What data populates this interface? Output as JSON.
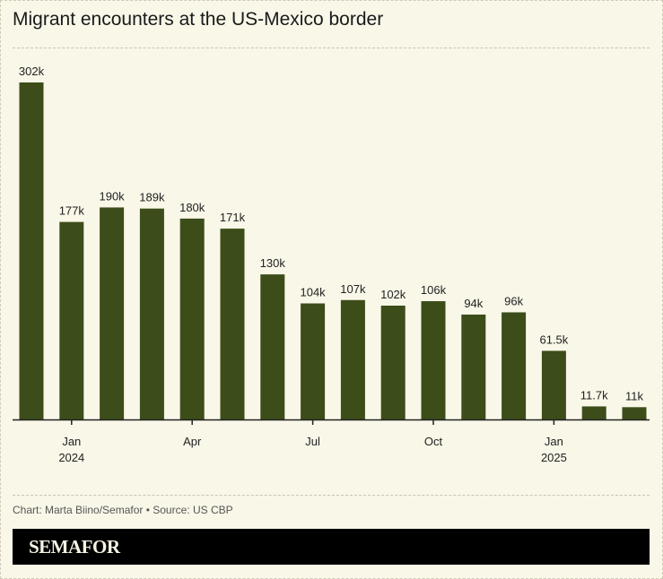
{
  "title": "Migrant encounters at the US-Mexico border",
  "credit": "Chart: Marta Biino/Semafor • Source: US CBP",
  "brand": "SEMAFOR",
  "colors": {
    "bar": "#3c4d1a",
    "background": "#f9f7e8"
  },
  "chart_data": {
    "type": "bar",
    "categories": [
      "Dec 2023",
      "Jan 2024",
      "Feb 2024",
      "Mar 2024",
      "Apr 2024",
      "May 2024",
      "Jun 2024",
      "Jul 2024",
      "Aug 2024",
      "Sep 2024",
      "Oct 2024",
      "Nov 2024",
      "Dec 2024",
      "Jan 2025",
      "Feb 2025",
      "Mar 2025"
    ],
    "values": [
      302000,
      177000,
      190000,
      189000,
      180000,
      171000,
      130000,
      104000,
      107000,
      102000,
      106000,
      94000,
      96000,
      61500,
      11700,
      11000
    ],
    "data_labels": [
      "302k",
      "177k",
      "190k",
      "189k",
      "180k",
      "171k",
      "130k",
      "104k",
      "107k",
      "102k",
      "106k",
      "94k",
      "96k",
      "61.5k",
      "11.7k",
      "11k"
    ],
    "x_ticks": [
      {
        "index": 1,
        "label": "Jan",
        "sublabel": "2024"
      },
      {
        "index": 4,
        "label": "Apr",
        "sublabel": ""
      },
      {
        "index": 7,
        "label": "Jul",
        "sublabel": ""
      },
      {
        "index": 10,
        "label": "Oct",
        "sublabel": ""
      },
      {
        "index": 13,
        "label": "Jan",
        "sublabel": "2025"
      }
    ],
    "ylim": [
      0,
      302000
    ],
    "grid": false,
    "xlabel": "",
    "ylabel": ""
  }
}
